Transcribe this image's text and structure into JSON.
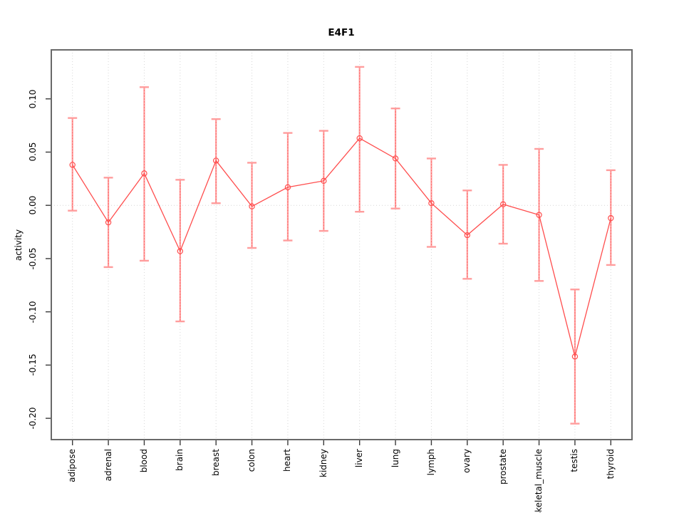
{
  "chart_data": {
    "type": "line",
    "title": "E4F1",
    "ylabel": "activity",
    "xlabel": "",
    "legend": "none",
    "grid": "vertical dotted line per category; horizontal dotted line at y=0",
    "categories": [
      "adipose",
      "adrenal",
      "blood",
      "brain",
      "breast",
      "colon",
      "heart",
      "kidney",
      "liver",
      "lung",
      "lymph",
      "ovary",
      "prostate",
      "skeletal_muscle",
      "testis",
      "thyroid"
    ],
    "series": [
      {
        "name": "activity",
        "marker": "open-circle",
        "values": [
          0.038,
          -0.016,
          0.03,
          -0.043,
          0.042,
          -0.001,
          0.017,
          0.023,
          0.063,
          0.044,
          0.002,
          -0.028,
          0.001,
          -0.009,
          -0.142,
          -0.012
        ],
        "error_upper": [
          0.082,
          0.026,
          0.111,
          0.024,
          0.081,
          0.04,
          0.068,
          0.07,
          0.13,
          0.091,
          0.044,
          0.014,
          0.038,
          0.053,
          -0.079,
          0.033
        ],
        "error_lower": [
          -0.005,
          -0.058,
          -0.052,
          -0.109,
          0.002,
          -0.04,
          -0.033,
          -0.024,
          -0.006,
          -0.003,
          -0.039,
          -0.069,
          -0.036,
          -0.071,
          -0.205,
          -0.056
        ]
      }
    ],
    "yticks": [
      0.1,
      0.05,
      0.0,
      -0.05,
      -0.1,
      -0.15,
      -0.2
    ],
    "ytick_labels": [
      "0.10",
      "0.05",
      "0.00",
      "-0.05",
      "-0.10",
      "-0.15",
      "-0.20"
    ],
    "ylim": [
      -0.22,
      0.146
    ],
    "colors": {
      "line": "#ff4d4d",
      "marker": "#ff4d4d",
      "error_bar": "#ff9d9d",
      "error_bar_dots": "#ff5a5a",
      "grid": "#d6d6d6",
      "frame": "#696969",
      "tick": "#3a3a3a",
      "text": "#000000",
      "background": "#ffffff"
    }
  }
}
